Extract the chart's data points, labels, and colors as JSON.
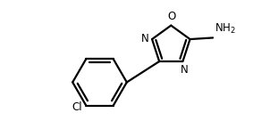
{
  "background_color": "#ffffff",
  "line_color": "#000000",
  "line_width": 1.6,
  "figure_width": 3.02,
  "figure_height": 1.45,
  "dpi": 100,
  "xlim": [
    -1.6,
    1.15
  ],
  "ylim": [
    -1.05,
    0.75
  ]
}
